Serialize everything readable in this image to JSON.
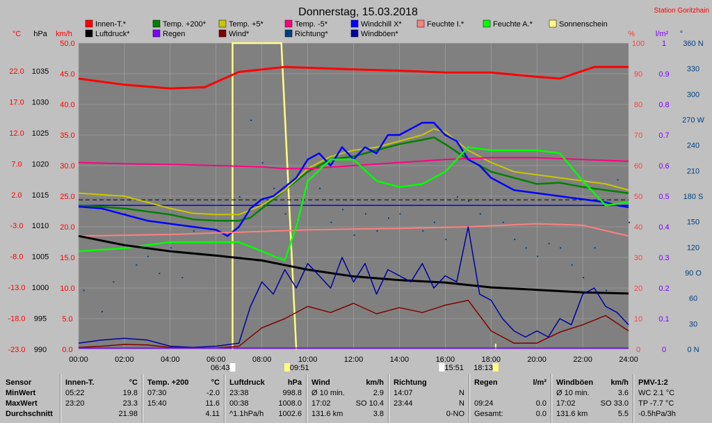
{
  "header": {
    "title": "Donnerstag, 15.03.2018",
    "station": "Station Goritzhain"
  },
  "axes_units": {
    "temp": "°C",
    "pressure": "hPa",
    "wind": "km/h",
    "percent": "%",
    "rain": "l/m²",
    "degree": "°"
  },
  "colors": {
    "plot_bg": "#808080",
    "grid": "#a8a8a8"
  },
  "legend": [
    {
      "label": "Innen-T.*",
      "color": "#ff0000"
    },
    {
      "label": "Temp. +200*",
      "color": "#008000"
    },
    {
      "label": "Temp. +5*",
      "color": "#c8c800"
    },
    {
      "label": "Temp. -5*",
      "color": "#ff0080"
    },
    {
      "label": "Windchill X*",
      "color": "#0000ff"
    },
    {
      "label": "Feuchte I.*",
      "color": "#ff8080"
    },
    {
      "label": "Feuchte A.*",
      "color": "#00ff00"
    },
    {
      "label": "Sonnenschein",
      "color": "#ffff80"
    },
    {
      "label": "Luftdruck*",
      "color": "#000000"
    },
    {
      "label": "Regen",
      "color": "#8000ff"
    },
    {
      "label": "Wind*",
      "color": "#800000"
    },
    {
      "label": "Richtung*",
      "color": "#004080"
    },
    {
      "label": "Windböen*",
      "color": "#0000a0"
    }
  ],
  "chart_data": {
    "type": "line",
    "title": "Donnerstag, 15.03.2018",
    "x_ticks": [
      "00:00",
      "02:00",
      "04:00",
      "06:00",
      "08:00",
      "10:00",
      "12:00",
      "14:00",
      "16:00",
      "18:00",
      "20:00",
      "22:00",
      "24:00"
    ],
    "y_left_temp_ticks": [
      "22.0",
      "17.0",
      "12.0",
      "7.0",
      "2.0",
      "-3.0",
      "-8.0",
      "-13.0",
      "-18.0",
      "-23.0"
    ],
    "y_left_pressure_ticks": [
      "1035",
      "1030",
      "1025",
      "1020",
      "1015",
      "1010",
      "1005",
      "1000",
      "995",
      "990"
    ],
    "y_left_wind_ticks": [
      "50.0",
      "45.0",
      "40.0",
      "35.0",
      "30.0",
      "25.0",
      "20.0",
      "15.0",
      "10.0",
      "5.0",
      "0.0"
    ],
    "y_right_percent_ticks": [
      "100",
      "90",
      "80",
      "70",
      "60",
      "50",
      "40",
      "30",
      "20",
      "10",
      "0"
    ],
    "y_right_rain_ticks": [
      "1",
      "0.9",
      "0.8",
      "0.7",
      "0.6",
      "0.5",
      "0.4",
      "0.3",
      "0.2",
      "0.1",
      "0"
    ],
    "y_right_dir_ticks": [
      "360 N",
      "330",
      "300",
      "270 W",
      "240",
      "210",
      "180 S",
      "150",
      "120",
      "90 O",
      "60",
      "30",
      "0 N"
    ],
    "x_range_hours": [
      0,
      24
    ],
    "wind_range_kmh": [
      0,
      50
    ],
    "sun_markers": [
      "06:43",
      "09:51",
      "15:51",
      "18:13"
    ],
    "series": [
      {
        "name": "Innen-T.*",
        "axis": "temp",
        "x": [
          0,
          2,
          4,
          5.5,
          7,
          9,
          12,
          14,
          16,
          18,
          20,
          21,
          22.5,
          24
        ],
        "y": [
          21.2,
          20.2,
          19.6,
          19.8,
          22.3,
          23.1,
          22.7,
          22.5,
          22.2,
          22.2,
          21.5,
          21.2,
          23.1,
          23.1
        ]
      },
      {
        "name": "Temp. +200*",
        "axis": "temp",
        "x": [
          0,
          2,
          4,
          5,
          6,
          7,
          7.5,
          8,
          9,
          10,
          11,
          12,
          13,
          14,
          15,
          15.5,
          16,
          17,
          18,
          19,
          20,
          21,
          22,
          23,
          24
        ],
        "y": [
          0.5,
          0,
          -1,
          -1.8,
          -2,
          -2,
          -1.5,
          0,
          3,
          6,
          8,
          8.5,
          9.5,
          10.5,
          11.2,
          11.6,
          10.5,
          8,
          6,
          5,
          4,
          4.2,
          3.5,
          3,
          2.5
        ]
      },
      {
        "name": "Temp. +5*",
        "axis": "temp",
        "x": [
          0,
          2,
          4,
          5,
          6,
          7,
          8,
          9,
          10,
          11,
          12,
          13,
          14,
          15,
          15.5,
          16,
          17,
          18,
          19,
          20,
          21,
          22,
          23,
          24
        ],
        "y": [
          2.5,
          2,
          0,
          -0.8,
          -1,
          -1,
          0.5,
          3,
          6.5,
          8.5,
          9.5,
          10,
          11,
          12,
          13,
          12.5,
          9.5,
          7.5,
          6,
          5.5,
          5,
          4.5,
          4,
          3
        ]
      },
      {
        "name": "Temp. -5*",
        "axis": "temp",
        "x": [
          0,
          2,
          4,
          6,
          8,
          9,
          10,
          12,
          14,
          16,
          18,
          20,
          22,
          24
        ],
        "y": [
          7.5,
          7.3,
          7.2,
          7,
          6.8,
          6.5,
          6.5,
          7,
          7.5,
          8,
          8.3,
          8.3,
          8,
          7.7
        ]
      },
      {
        "name": "Windchill X*",
        "axis": "temp",
        "x": [
          0,
          1,
          2,
          3,
          4,
          5,
          6,
          6.5,
          7,
          7.5,
          8,
          8.5,
          9,
          9.5,
          10,
          10.5,
          11,
          11.5,
          12,
          12.5,
          13,
          13.5,
          14,
          14.5,
          15,
          15.5,
          16,
          16.5,
          17,
          17.5,
          18,
          18.5,
          19,
          20,
          21,
          22,
          23,
          23.5,
          24
        ],
        "y": [
          0.3,
          0,
          -1,
          -2,
          -2.5,
          -3,
          -3.5,
          -4.5,
          -3,
          0,
          1.5,
          2,
          3.5,
          5,
          8,
          9,
          7,
          10,
          8,
          10,
          9,
          12,
          12,
          13,
          14,
          14,
          12,
          11,
          8,
          7,
          5,
          4,
          3,
          2.5,
          2,
          1.5,
          1,
          0.5,
          0.2
        ]
      },
      {
        "name": "Feuchte I.*",
        "axis": "percent",
        "x": [
          0,
          4,
          8,
          10,
          14,
          17,
          20,
          22,
          24
        ],
        "y": [
          37,
          37.5,
          38.5,
          39,
          39.5,
          40,
          41,
          40.5,
          37
        ]
      },
      {
        "name": "Feuchte A.*",
        "axis": "percent",
        "x": [
          0,
          2,
          4,
          6,
          7,
          8,
          9,
          9.5,
          10,
          11,
          12,
          13,
          14,
          15,
          16,
          17,
          18,
          19,
          20,
          21,
          22,
          23,
          24
        ],
        "y": [
          32,
          33,
          35,
          35,
          35,
          32,
          29,
          40,
          55,
          62,
          62,
          55,
          53,
          54,
          58,
          66,
          65,
          65,
          65,
          64,
          55,
          47,
          48
        ]
      },
      {
        "name": "Luftdruck*",
        "axis": "pressure",
        "x": [
          0,
          2,
          4,
          6,
          8,
          10,
          12,
          14,
          16,
          18,
          20,
          22,
          24
        ],
        "y": [
          1008.5,
          1007,
          1006,
          1005.3,
          1004.5,
          1003,
          1001.9,
          1001.3,
          1000.9,
          1000.1,
          999.7,
          999.3,
          999.1
        ]
      },
      {
        "name": "Wind*",
        "axis": "wind",
        "x": [
          0,
          1,
          2,
          3,
          4,
          5,
          6,
          7,
          8,
          9,
          10,
          11,
          12,
          13,
          14,
          15,
          16,
          17,
          18,
          18.5,
          19,
          20,
          21,
          22,
          23,
          24
        ],
        "y": [
          0.3,
          0.5,
          0.8,
          0.7,
          0.3,
          0.2,
          0.2,
          0.5,
          3.5,
          5,
          7,
          6,
          7.5,
          5.8,
          6.8,
          6,
          7.2,
          8,
          3,
          2,
          1,
          1,
          2.8,
          4,
          5.5,
          3
        ]
      },
      {
        "name": "Windböen*",
        "axis": "wind",
        "x": [
          0,
          1,
          2,
          3,
          4,
          5,
          6,
          7,
          7.5,
          8,
          8.5,
          9,
          9.5,
          10,
          10.5,
          11,
          11.5,
          12,
          12.5,
          13,
          13.5,
          14,
          14.5,
          15,
          15.5,
          16,
          16.5,
          17,
          17.5,
          18,
          18.5,
          19,
          19.5,
          20,
          20.5,
          21,
          21.5,
          22,
          22.5,
          23,
          23.5,
          24
        ],
        "y": [
          1,
          1.5,
          1.8,
          1.5,
          0.5,
          0.3,
          0.5,
          1,
          7,
          11,
          9,
          13,
          10,
          14,
          12,
          10,
          15,
          11,
          14,
          9,
          13,
          12,
          11,
          14,
          10,
          12,
          11,
          20,
          9,
          8,
          5,
          3,
          2,
          3,
          2,
          5,
          4,
          9,
          10,
          7,
          6,
          4
        ]
      }
    ],
    "direction_scatter_deg": {
      "x": [
        0.2,
        1,
        1.5,
        2,
        2.5,
        3,
        3.5,
        4,
        4.5,
        5,
        5.5,
        6,
        7,
        7.5,
        8,
        8.5,
        9,
        9.5,
        10,
        10.5,
        11,
        11.5,
        12,
        12.5,
        13,
        13.5,
        14,
        14.5,
        15,
        15.5,
        16,
        16.5,
        17,
        17.5,
        18,
        18.5,
        19,
        19.5,
        20,
        20.5,
        21,
        21.5,
        22,
        22.5,
        23,
        23.5,
        24
      ],
      "y": [
        70,
        45,
        80,
        160,
        100,
        110,
        90,
        120,
        85,
        140,
        160,
        170,
        180,
        270,
        220,
        190,
        160,
        150,
        170,
        190,
        150,
        165,
        135,
        160,
        140,
        155,
        160,
        170,
        140,
        150,
        130,
        180,
        175,
        160,
        170,
        150,
        130,
        120,
        110,
        125,
        120,
        100,
        85,
        120,
        70,
        200,
        150
      ]
    },
    "sunshine_intervals": [
      [
        6.72,
        8.85
      ],
      [
        8.85,
        9.5
      ]
    ]
  },
  "table": {
    "cols": [
      {
        "title": "Innen-T.",
        "unit": "°C",
        "min_t": "05:22",
        "min_v": "19.8",
        "max_t": "23:20",
        "max_v": "23.3",
        "avg_t": "",
        "avg_v": "21.98"
      },
      {
        "title": "Temp. +200",
        "unit": "°C",
        "min_t": "07:30",
        "min_v": "-2.0",
        "max_t": "15:40",
        "max_v": "11.6",
        "avg_t": "",
        "avg_v": "4.11"
      },
      {
        "title": "Luftdruck",
        "unit": "hPa",
        "min_t": "23:38",
        "min_v": "998.8",
        "max_t": "00:38",
        "max_v": "1008.0",
        "avg_t": "^1.1hPa/h",
        "avg_v": "1002.6"
      },
      {
        "title": "Wind",
        "unit": "km/h",
        "min_t": "Ø 10 min.",
        "min_v": "2.9",
        "max_t": "17:02",
        "max_v": "SO 10.4",
        "avg_t": "131.6 km",
        "avg_v": "3.8"
      },
      {
        "title": "Richtung",
        "unit": "",
        "min_t": "14:07",
        "min_v": "N",
        "max_t": "23:44",
        "max_v": "N",
        "avg_t": "",
        "avg_v": "0-NO"
      },
      {
        "title": "Regen",
        "unit": "l/m²",
        "min_t": "",
        "min_v": "",
        "max_t": "09:24",
        "max_v": "0.0",
        "avg_t": "Gesamt:",
        "avg_v": "0.0"
      },
      {
        "title": "Windböen",
        "unit": "km/h",
        "min_t": "Ø 10 min.",
        "min_v": "3.6",
        "max_t": "17:02",
        "max_v": "SO 33.0",
        "avg_t": "131.6 km",
        "avg_v": "5.5"
      },
      {
        "title": "PMV-1:2",
        "unit": "",
        "min_t": "WC 2.1 °C",
        "min_v": "",
        "max_t": "TP -7.7 °C",
        "max_v": "",
        "avg_t": "-0.5hPa/3h",
        "avg_v": ""
      }
    ],
    "row_labels": {
      "head": "Sensor",
      "min": "MinWert",
      "max": "MaxWert",
      "avg": "Durchschnitt"
    }
  }
}
